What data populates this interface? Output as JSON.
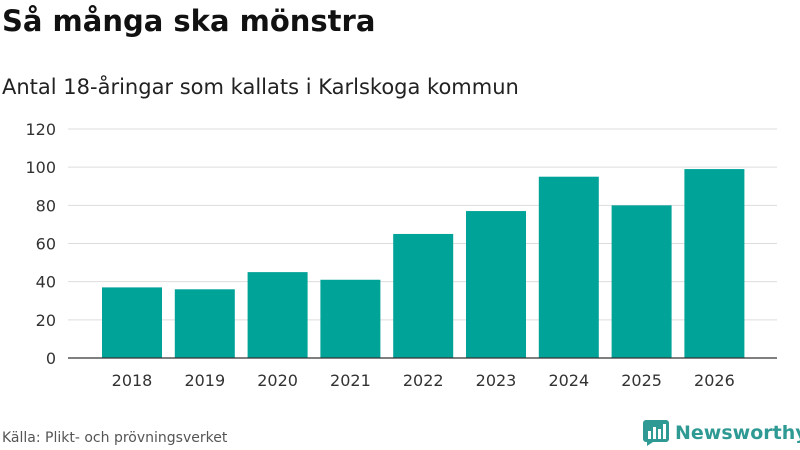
{
  "title": "Så många ska mönstra",
  "subtitle": "Antal 18-åringar som kallats i Karlskoga kommun",
  "source": "Källa: Plikt- och prövningsverket",
  "brand": {
    "name": "Newsworthy",
    "icon": "bar-chart-logo-icon"
  },
  "colors": {
    "bar": "#00a398",
    "grid": "#dddddd",
    "axis": "#333333",
    "brand": "#2f9a93"
  },
  "chart_data": {
    "type": "bar",
    "categories": [
      "2018",
      "2019",
      "2020",
      "2021",
      "2022",
      "2023",
      "2024",
      "2025",
      "2026"
    ],
    "values": [
      37,
      36,
      45,
      41,
      65,
      77,
      95,
      80,
      99
    ],
    "title": "Så många ska mönstra",
    "subtitle": "Antal 18-åringar som kallats i Karlskoga kommun",
    "xlabel": "",
    "ylabel": "",
    "ylim": [
      0,
      120
    ],
    "yticks": [
      0,
      20,
      40,
      60,
      80,
      100,
      120
    ],
    "grid": true,
    "legend": "none"
  }
}
